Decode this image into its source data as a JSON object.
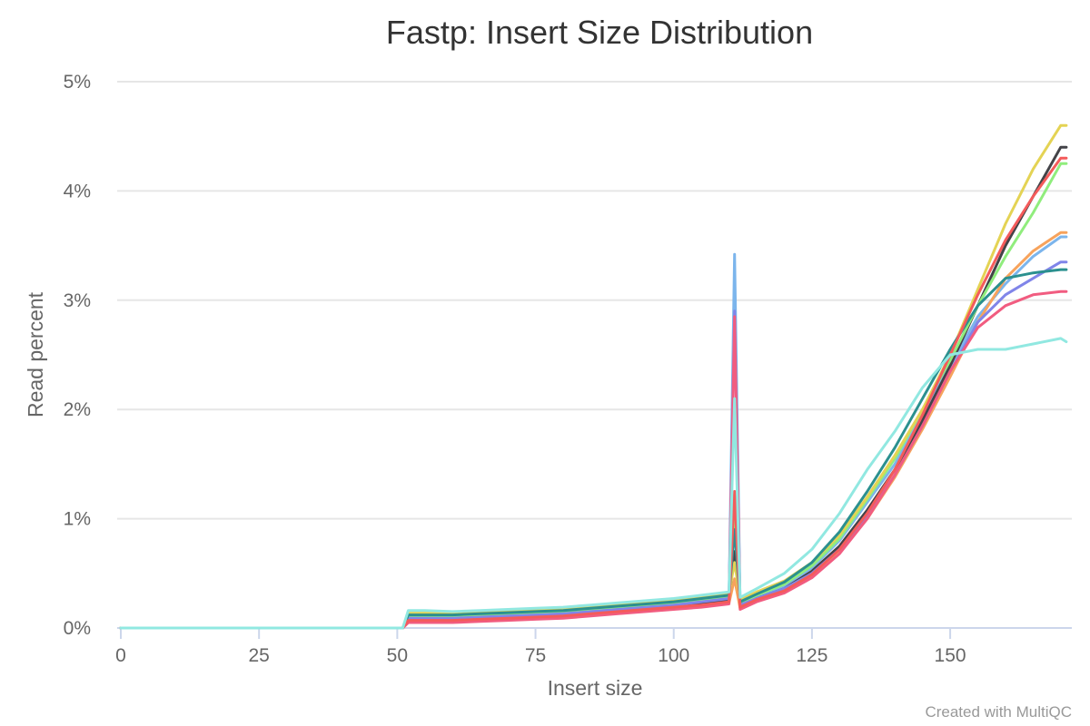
{
  "chart_data": {
    "type": "line",
    "title": "Fastp: Insert Size Distribution",
    "xlabel": "Insert size",
    "ylabel": "Read percent",
    "xlim": [
      0,
      172
    ],
    "ylim": [
      0,
      5
    ],
    "x_ticks": [
      0,
      25,
      50,
      75,
      100,
      125,
      150
    ],
    "x_tick_labels": [
      "0",
      "25",
      "50",
      "75",
      "100",
      "125",
      "150"
    ],
    "y_ticks": [
      0,
      1,
      2,
      3,
      4,
      5
    ],
    "y_tick_labels": [
      "0%",
      "1%",
      "2%",
      "3%",
      "4%",
      "5%"
    ],
    "grid": true,
    "legend": "none",
    "credits": "Created with MultiQC",
    "x": [
      0,
      51,
      52,
      55,
      60,
      65,
      70,
      75,
      80,
      85,
      90,
      95,
      100,
      105,
      110,
      111,
      112,
      115,
      120,
      125,
      130,
      135,
      140,
      145,
      150,
      155,
      160,
      165,
      170,
      171
    ],
    "series": [
      {
        "color": "#7cb5ec",
        "values": [
          0,
          0,
          0.1,
          0.1,
          0.1,
          0.11,
          0.12,
          0.13,
          0.14,
          0.16,
          0.18,
          0.2,
          0.22,
          0.25,
          0.28,
          3.42,
          0.22,
          0.28,
          0.38,
          0.55,
          0.8,
          1.15,
          1.5,
          1.95,
          2.4,
          2.85,
          3.15,
          3.4,
          3.58,
          3.58
        ]
      },
      {
        "color": "#434348",
        "values": [
          0,
          0,
          0.08,
          0.08,
          0.08,
          0.09,
          0.1,
          0.11,
          0.12,
          0.14,
          0.16,
          0.18,
          0.2,
          0.22,
          0.25,
          0.7,
          0.2,
          0.27,
          0.36,
          0.52,
          0.75,
          1.08,
          1.45,
          1.9,
          2.4,
          2.95,
          3.5,
          3.95,
          4.4,
          4.4
        ]
      },
      {
        "color": "#90ed7d",
        "values": [
          0,
          0,
          0.11,
          0.11,
          0.11,
          0.12,
          0.13,
          0.14,
          0.15,
          0.17,
          0.19,
          0.21,
          0.23,
          0.26,
          0.29,
          1.1,
          0.23,
          0.3,
          0.4,
          0.57,
          0.82,
          1.18,
          1.55,
          2.0,
          2.45,
          2.95,
          3.4,
          3.8,
          4.25,
          4.25
        ]
      },
      {
        "color": "#f7a35c",
        "values": [
          0,
          0,
          0.06,
          0.06,
          0.07,
          0.07,
          0.08,
          0.09,
          0.1,
          0.12,
          0.14,
          0.16,
          0.18,
          0.2,
          0.23,
          0.45,
          0.18,
          0.25,
          0.33,
          0.48,
          0.7,
          1.0,
          1.38,
          1.82,
          2.3,
          2.8,
          3.2,
          3.45,
          3.62,
          3.62
        ]
      },
      {
        "color": "#8085e9",
        "values": [
          0,
          0,
          0.09,
          0.09,
          0.09,
          0.1,
          0.11,
          0.12,
          0.13,
          0.15,
          0.17,
          0.19,
          0.21,
          0.24,
          0.27,
          2.9,
          0.21,
          0.27,
          0.36,
          0.5,
          0.72,
          1.02,
          1.4,
          1.85,
          2.35,
          2.8,
          3.05,
          3.2,
          3.35,
          3.35
        ]
      },
      {
        "color": "#f15c80",
        "values": [
          0,
          0,
          0.05,
          0.05,
          0.05,
          0.06,
          0.07,
          0.08,
          0.09,
          0.11,
          0.13,
          0.15,
          0.17,
          0.19,
          0.22,
          2.85,
          0.17,
          0.24,
          0.32,
          0.46,
          0.68,
          1.0,
          1.4,
          1.85,
          2.35,
          2.75,
          2.95,
          3.05,
          3.08,
          3.08
        ]
      },
      {
        "color": "#e4d354",
        "values": [
          0,
          0,
          0.14,
          0.14,
          0.14,
          0.15,
          0.16,
          0.17,
          0.18,
          0.2,
          0.22,
          0.24,
          0.26,
          0.29,
          0.32,
          0.6,
          0.26,
          0.33,
          0.43,
          0.6,
          0.85,
          1.2,
          1.58,
          2.0,
          2.5,
          3.1,
          3.7,
          4.2,
          4.6,
          4.6
        ]
      },
      {
        "color": "#2b908f",
        "values": [
          0,
          0,
          0.12,
          0.12,
          0.12,
          0.13,
          0.14,
          0.15,
          0.16,
          0.18,
          0.2,
          0.22,
          0.24,
          0.27,
          0.3,
          0.9,
          0.24,
          0.31,
          0.42,
          0.6,
          0.88,
          1.25,
          1.65,
          2.1,
          2.55,
          2.95,
          3.2,
          3.25,
          3.28,
          3.28
        ]
      },
      {
        "color": "#f45b5b",
        "values": [
          0,
          0,
          0.07,
          0.07,
          0.07,
          0.08,
          0.09,
          0.1,
          0.11,
          0.13,
          0.15,
          0.17,
          0.19,
          0.21,
          0.24,
          1.25,
          0.19,
          0.26,
          0.34,
          0.49,
          0.72,
          1.05,
          1.45,
          1.95,
          2.5,
          3.05,
          3.55,
          3.95,
          4.3,
          4.3
        ]
      },
      {
        "color": "#91e8e1",
        "values": [
          0,
          0,
          0.16,
          0.16,
          0.15,
          0.16,
          0.17,
          0.18,
          0.19,
          0.21,
          0.23,
          0.25,
          0.27,
          0.3,
          0.33,
          2.1,
          0.28,
          0.36,
          0.5,
          0.72,
          1.05,
          1.45,
          1.8,
          2.2,
          2.5,
          2.55,
          2.55,
          2.6,
          2.65,
          2.62
        ]
      }
    ]
  }
}
